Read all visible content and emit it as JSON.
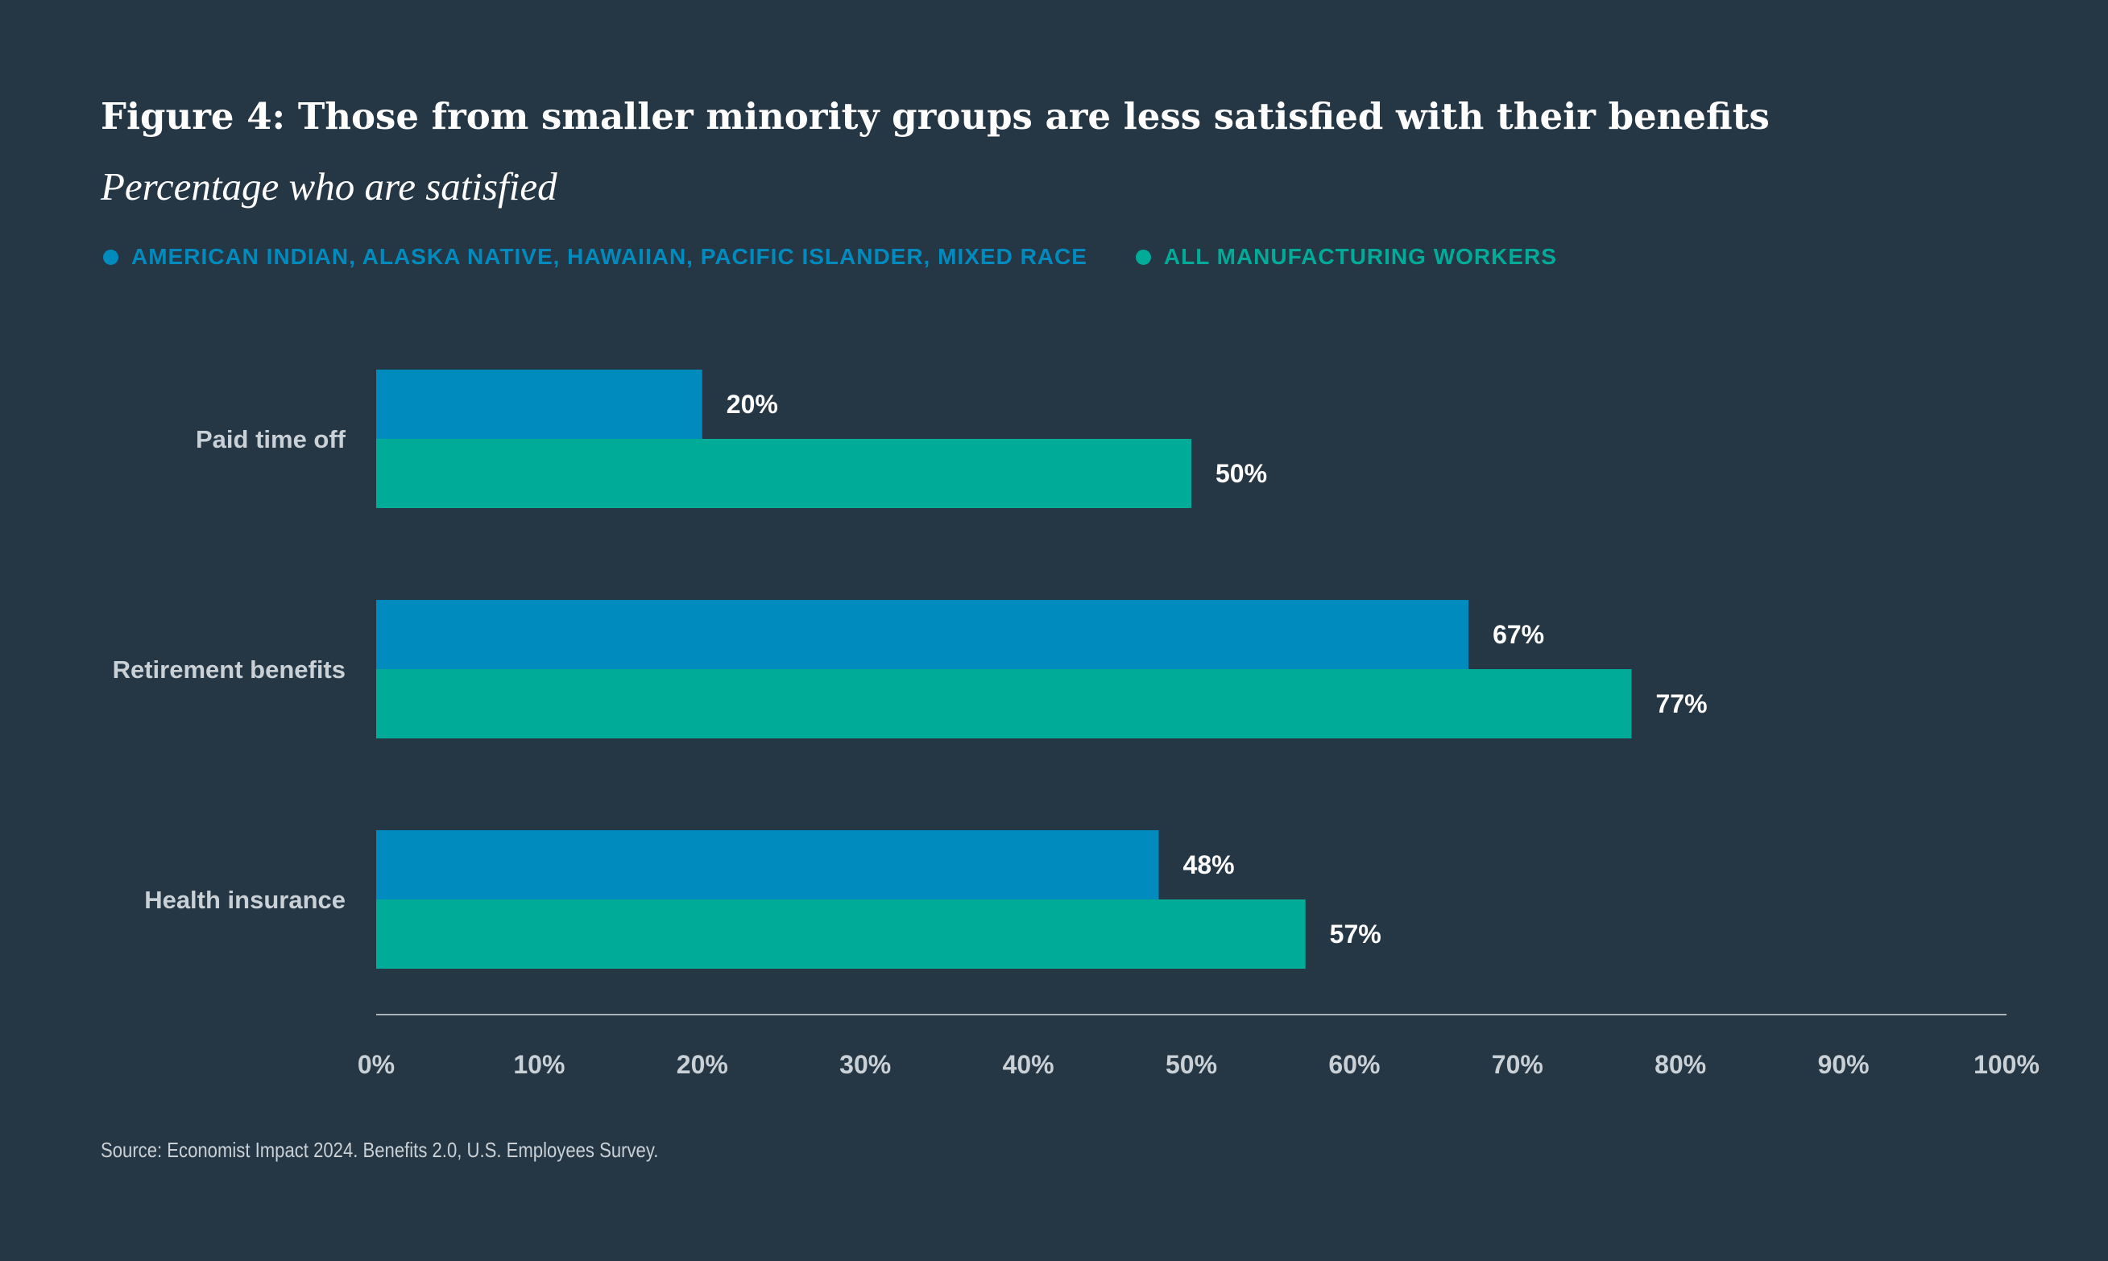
{
  "colors": {
    "background": "#253645",
    "series_1": "#008bbf",
    "series_2": "#00ab98",
    "category_label": "#c9d0d6",
    "axis_line": "#aab4bd"
  },
  "chart_data": {
    "type": "bar",
    "orientation": "horizontal",
    "title": "Figure 4: Those from smaller minority groups are less satisfied with their benefits",
    "subtitle": "Percentage who are satisfied",
    "categories": [
      "Paid time off",
      "Retirement benefits",
      "Health insurance"
    ],
    "series": [
      {
        "name": "AMERICAN INDIAN, ALASKA NATIVE, HAWAIIAN, PACIFIC ISLANDER, MIXED RACE",
        "values": [
          20,
          67,
          48
        ]
      },
      {
        "name": "ALL MANUFACTURING WORKERS",
        "values": [
          50,
          77,
          57
        ]
      }
    ],
    "value_suffix": "%",
    "xlim": [
      0,
      100
    ],
    "x_ticks": [
      0,
      10,
      20,
      30,
      40,
      50,
      60,
      70,
      80,
      90,
      100
    ],
    "x_tick_labels": [
      "0%",
      "10%",
      "20%",
      "30%",
      "40%",
      "50%",
      "60%",
      "70%",
      "80%",
      "90%",
      "100%"
    ],
    "xlabel": "",
    "ylabel": "",
    "grid": false,
    "legend_position": "top-left"
  },
  "source": "Source: Economist Impact 2024. Benefits 2.0, U.S. Employees Survey."
}
